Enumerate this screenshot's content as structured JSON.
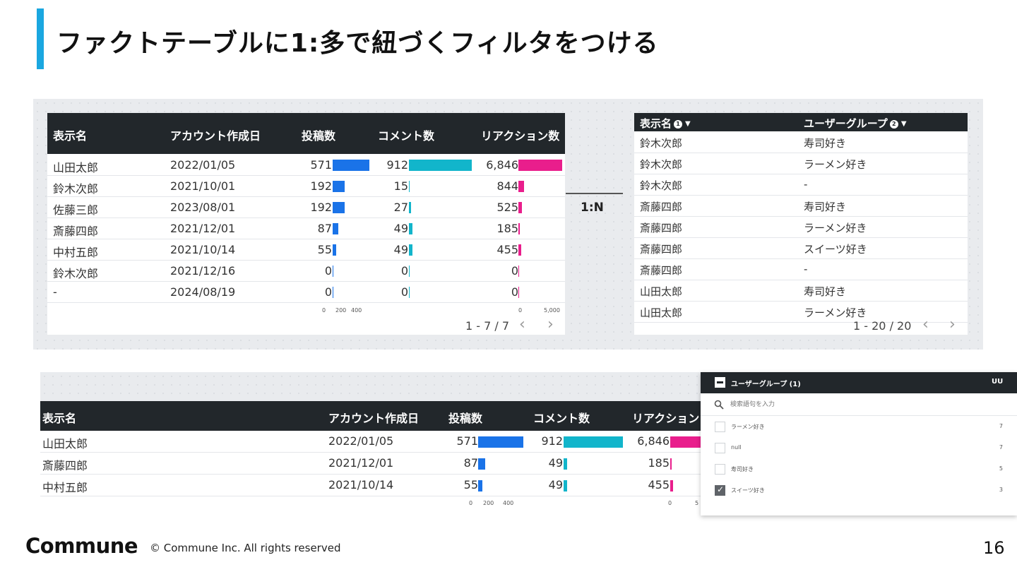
{
  "slide": {
    "title": "ファクトテーブルに1:多で紐づくフィルタをつける",
    "page_number": "16",
    "accent_color": "#1aa7e0"
  },
  "footer": {
    "logo": "Commune",
    "copyright": "© Commune Inc. All rights reserved"
  },
  "fact_table": {
    "columns": [
      "表示名",
      "アカウント作成日",
      "投稿数",
      "コメント数",
      "リアクション数"
    ],
    "rows": [
      {
        "name": "山田太郎",
        "date": "2022/01/05",
        "posts": "571",
        "comments": "912",
        "reactions": "6,846"
      },
      {
        "name": "鈴木次郎",
        "date": "2021/10/01",
        "posts": "192",
        "comments": "15",
        "reactions": "844"
      },
      {
        "name": "佐藤三郎",
        "date": "2023/08/01",
        "posts": "192",
        "comments": "27",
        "reactions": "525"
      },
      {
        "name": "斎藤四郎",
        "date": "2021/12/01",
        "posts": "87",
        "comments": "49",
        "reactions": "185"
      },
      {
        "name": "中村五郎",
        "date": "2021/10/14",
        "posts": "55",
        "comments": "49",
        "reactions": "455"
      },
      {
        "name": "鈴木次郎",
        "date": "2021/12/16",
        "posts": "0",
        "comments": "0",
        "reactions": "0"
      },
      {
        "name": "-",
        "date": "2024/08/19",
        "posts": "0",
        "comments": "0",
        "reactions": "0"
      }
    ],
    "axis_posts": [
      "0",
      "200",
      "400"
    ],
    "axis_reactions": [
      "0",
      "5,000"
    ],
    "pagination": "1 - 7 / 7",
    "bar_colors": {
      "posts": "#1a73e8",
      "comments": "#12b5cb",
      "reactions": "#e91e8c"
    }
  },
  "relation_label": "1:N",
  "group_table": {
    "columns": [
      "表示名",
      "ユーザーグループ"
    ],
    "header_icons": [
      "1",
      "2"
    ],
    "rows": [
      {
        "name": "鈴木次郎",
        "group": "寿司好き"
      },
      {
        "name": "鈴木次郎",
        "group": "ラーメン好き"
      },
      {
        "name": "鈴木次郎",
        "group": "-"
      },
      {
        "name": "斎藤四郎",
        "group": "寿司好き"
      },
      {
        "name": "斎藤四郎",
        "group": "ラーメン好き"
      },
      {
        "name": "斎藤四郎",
        "group": "スイーツ好き"
      },
      {
        "name": "斎藤四郎",
        "group": "-"
      },
      {
        "name": "山田太郎",
        "group": "寿司好き"
      },
      {
        "name": "山田太郎",
        "group": "ラーメン好き"
      }
    ],
    "pagination": "1 - 20 / 20"
  },
  "filtered_table": {
    "columns": [
      "表示名",
      "アカウント作成日",
      "投稿数",
      "コメント数",
      "リアクション"
    ],
    "rows": [
      {
        "name": "山田太郎",
        "date": "2022/01/05",
        "posts": "571",
        "comments": "912",
        "reactions": "6,846"
      },
      {
        "name": "斎藤四郎",
        "date": "2021/12/01",
        "posts": "87",
        "comments": "49",
        "reactions": "185"
      },
      {
        "name": "中村五郎",
        "date": "2021/10/14",
        "posts": "55",
        "comments": "49",
        "reactions": "455"
      }
    ],
    "axis_posts": [
      "0",
      "200",
      "400"
    ],
    "axis_reactions": [
      "0",
      "5"
    ]
  },
  "filter_dropdown": {
    "title": "ユーザーグループ (1)",
    "metric": "UU",
    "search_placeholder": "検索語句を入力",
    "options": [
      {
        "label": "ラーメン好き",
        "count": "7",
        "checked": false
      },
      {
        "label": "null",
        "count": "7",
        "checked": false
      },
      {
        "label": "寿司好き",
        "count": "5",
        "checked": false
      },
      {
        "label": "スイーツ好き",
        "count": "3",
        "checked": true
      }
    ]
  }
}
